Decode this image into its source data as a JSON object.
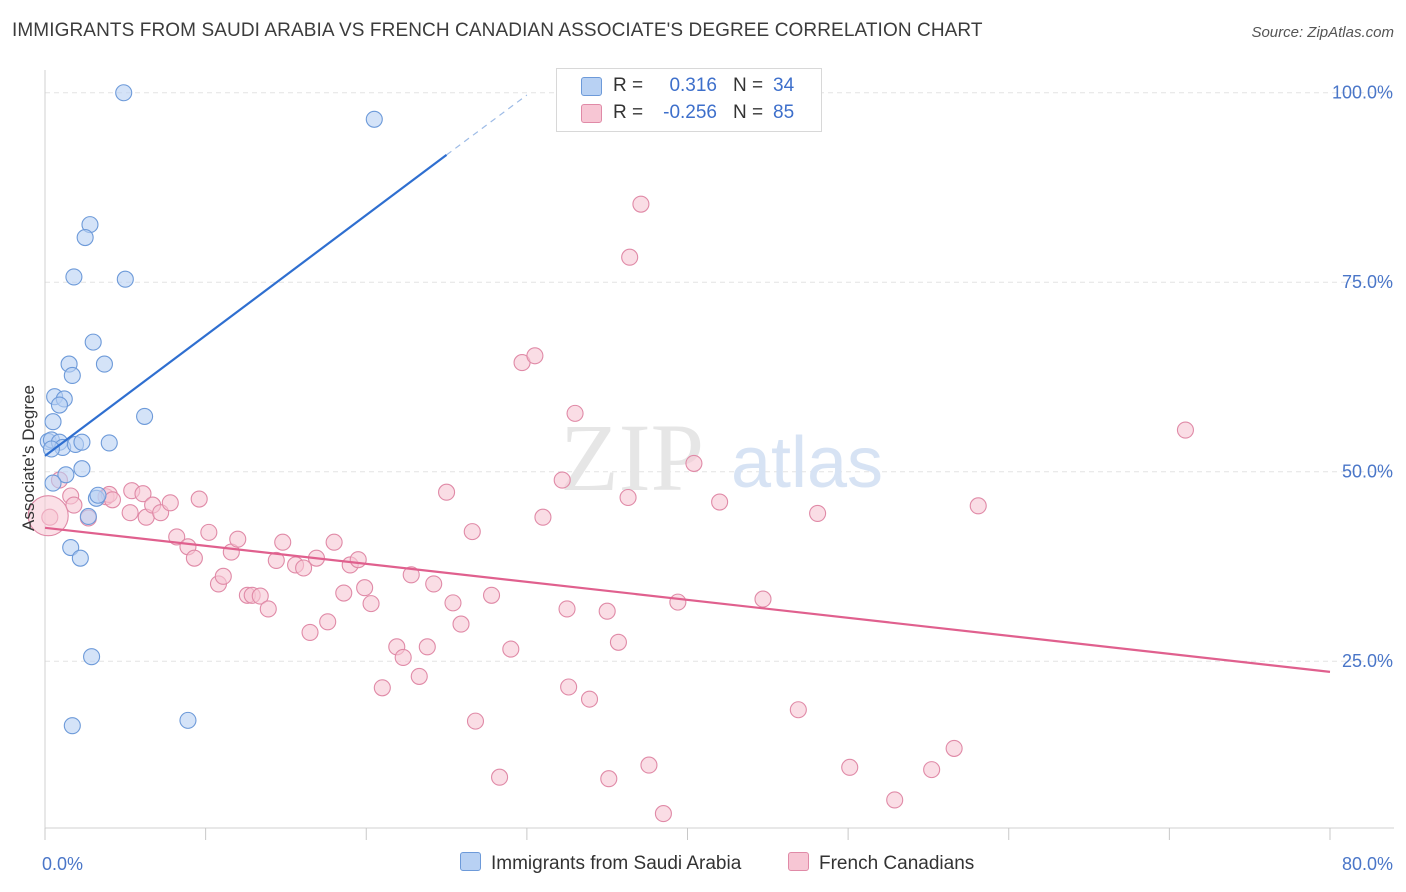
{
  "title": "IMMIGRANTS FROM SAUDI ARABIA VS FRENCH CANADIAN ASSOCIATE'S DEGREE CORRELATION CHART",
  "source": "Source: ZipAtlas.com",
  "watermark": {
    "zip": "ZIP",
    "atlas": "atlas"
  },
  "legend": [
    {
      "r_label": "R =",
      "r_value": "0.316",
      "n_label": "N =",
      "n_value": "34"
    },
    {
      "r_label": "R =",
      "r_value": "-0.256",
      "n_label": "N =",
      "n_value": "85"
    }
  ],
  "colors": {
    "blue_fill": "#b8d1f3",
    "blue_stroke": "#6d9ad9",
    "blue_line": "#2f6fd0",
    "pink_fill": "#f7c6d4",
    "pink_stroke": "#e08aa7",
    "pink_line": "#e0608e",
    "grid": "#e3e3e3",
    "axis_label": "#4a76c8"
  },
  "chart_data": {
    "type": "scatter",
    "title": "IMMIGRANTS FROM SAUDI ARABIA VS FRENCH CANADIAN ASSOCIATE'S DEGREE CORRELATION CHART",
    "xlabel": "",
    "ylabel": "Associate's Degree",
    "xlim": [
      0,
      80
    ],
    "ylim": [
      3,
      103
    ],
    "x_tick_labels": [
      {
        "value": 0,
        "label": "0.0%"
      },
      {
        "value": 80,
        "label": "80.0%"
      }
    ],
    "y_tick_labels": [
      {
        "value": 100,
        "label": "100.0%"
      },
      {
        "value": 75,
        "label": "75.0%"
      },
      {
        "value": 50,
        "label": "50.0%"
      },
      {
        "value": 25,
        "label": "25.0%"
      }
    ],
    "grid": true,
    "legend_position": "top-center",
    "series": [
      {
        "name": "Immigrants from Saudi Arabia",
        "color": "blue",
        "points": [
          [
            4.9,
            100
          ],
          [
            20.5,
            96.5
          ],
          [
            2.8,
            82.6
          ],
          [
            2.5,
            80.9
          ],
          [
            1.8,
            75.7
          ],
          [
            5.0,
            75.4
          ],
          [
            3.0,
            67.1
          ],
          [
            1.5,
            64.2
          ],
          [
            3.7,
            64.2
          ],
          [
            1.7,
            62.7
          ],
          [
            0.6,
            59.9
          ],
          [
            1.2,
            59.6
          ],
          [
            0.9,
            58.8
          ],
          [
            6.2,
            57.3
          ],
          [
            0.5,
            56.6
          ],
          [
            0.2,
            54.0
          ],
          [
            0.4,
            54.2
          ],
          [
            0.9,
            53.9
          ],
          [
            1.1,
            53.2
          ],
          [
            0.4,
            53.0
          ],
          [
            1.9,
            53.6
          ],
          [
            2.3,
            53.9
          ],
          [
            4.0,
            53.8
          ],
          [
            2.3,
            50.4
          ],
          [
            1.3,
            49.6
          ],
          [
            0.5,
            48.5
          ],
          [
            3.2,
            46.5
          ],
          [
            3.3,
            46.9
          ],
          [
            2.7,
            44.1
          ],
          [
            1.6,
            40.0
          ],
          [
            2.2,
            38.6
          ],
          [
            2.9,
            25.6
          ],
          [
            1.7,
            16.5
          ],
          [
            8.9,
            17.2
          ]
        ]
      },
      {
        "name": "French Canadians",
        "color": "pink",
        "points": [
          [
            0.3,
            44.0
          ],
          [
            0.9,
            48.9
          ],
          [
            1.6,
            46.8
          ],
          [
            1.8,
            45.6
          ],
          [
            3.8,
            46.7
          ],
          [
            4.0,
            47.0
          ],
          [
            4.2,
            46.3
          ],
          [
            2.7,
            43.9
          ],
          [
            5.3,
            44.6
          ],
          [
            5.4,
            47.5
          ],
          [
            6.1,
            47.1
          ],
          [
            6.3,
            44.0
          ],
          [
            6.7,
            45.6
          ],
          [
            7.2,
            44.6
          ],
          [
            7.8,
            45.9
          ],
          [
            8.2,
            41.4
          ],
          [
            8.9,
            40.1
          ],
          [
            9.3,
            38.6
          ],
          [
            9.6,
            46.4
          ],
          [
            10.2,
            42.0
          ],
          [
            10.8,
            35.2
          ],
          [
            11.1,
            36.2
          ],
          [
            11.6,
            39.4
          ],
          [
            12.0,
            41.1
          ],
          [
            12.6,
            33.7
          ],
          [
            12.9,
            33.7
          ],
          [
            13.4,
            33.6
          ],
          [
            13.9,
            31.9
          ],
          [
            14.4,
            38.3
          ],
          [
            14.8,
            40.7
          ],
          [
            15.6,
            37.7
          ],
          [
            16.1,
            37.3
          ],
          [
            16.5,
            28.8
          ],
          [
            16.9,
            38.6
          ],
          [
            17.6,
            30.2
          ],
          [
            18.0,
            40.7
          ],
          [
            18.6,
            34.0
          ],
          [
            19.0,
            37.7
          ],
          [
            19.5,
            38.4
          ],
          [
            19.9,
            34.7
          ],
          [
            20.3,
            32.6
          ],
          [
            21.0,
            21.5
          ],
          [
            21.9,
            26.9
          ],
          [
            22.3,
            25.5
          ],
          [
            22.8,
            36.4
          ],
          [
            23.3,
            23.0
          ],
          [
            23.8,
            26.9
          ],
          [
            24.2,
            35.2
          ],
          [
            25.0,
            47.3
          ],
          [
            25.4,
            32.7
          ],
          [
            25.9,
            29.9
          ],
          [
            26.6,
            42.1
          ],
          [
            26.8,
            17.1
          ],
          [
            27.8,
            33.7
          ],
          [
            28.3,
            9.7
          ],
          [
            29.0,
            26.6
          ],
          [
            29.7,
            64.4
          ],
          [
            30.5,
            65.3
          ],
          [
            31.0,
            44.0
          ],
          [
            32.2,
            48.9
          ],
          [
            33.0,
            57.7
          ],
          [
            32.5,
            31.9
          ],
          [
            32.6,
            21.6
          ],
          [
            33.9,
            20.0
          ],
          [
            35.0,
            31.6
          ],
          [
            35.1,
            9.5
          ],
          [
            35.7,
            27.5
          ],
          [
            36.3,
            46.6
          ],
          [
            36.4,
            78.3
          ],
          [
            37.1,
            85.3
          ],
          [
            37.6,
            11.3
          ],
          [
            38.5,
            4.9
          ],
          [
            39.4,
            32.8
          ],
          [
            40.4,
            51.1
          ],
          [
            42.0,
            46.0
          ],
          [
            44.7,
            33.2
          ],
          [
            46.9,
            18.6
          ],
          [
            48.1,
            44.5
          ],
          [
            50.1,
            11.0
          ],
          [
            52.9,
            6.7
          ],
          [
            55.2,
            10.7
          ],
          [
            56.6,
            13.5
          ],
          [
            58.1,
            45.5
          ],
          [
            71.0,
            55.5
          ],
          [
            0.2,
            44.2
          ]
        ]
      }
    ],
    "trend_lines": [
      {
        "series": "Immigrants from Saudi Arabia",
        "x0": 0.0,
        "y0": 52.1,
        "x1": 25.0,
        "y1": 91.8,
        "dashed_to_x": 30.0,
        "dashed_to_y": 99.7
      },
      {
        "series": "French Canadians",
        "x0": 0.0,
        "y0": 42.6,
        "x1": 80.0,
        "y1": 23.6
      }
    ]
  },
  "bottom_legend": [
    {
      "label": "Immigrants from Saudi Arabia"
    },
    {
      "label": "French Canadians"
    }
  ]
}
